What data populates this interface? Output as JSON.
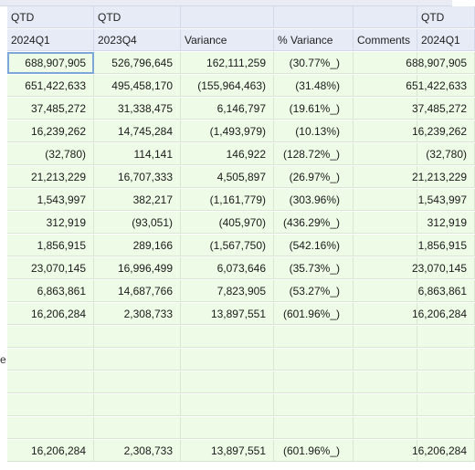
{
  "header_rows": [
    [
      "QTD",
      "QTD",
      "",
      "",
      "",
      "QTD"
    ],
    [
      "2024Q1",
      "2023Q4",
      "Variance",
      "% Variance",
      "Comments",
      "2024Q1"
    ]
  ],
  "rows": [
    {
      "gutter": "",
      "v": [
        "688,907,905",
        "526,796,645",
        "162,111,259",
        "(30.77%_)",
        "",
        "688,907,905"
      ]
    },
    {
      "gutter": "",
      "v": [
        "651,422,633",
        "495,458,170",
        "(155,964,463)",
        "(31.48%)",
        "",
        "651,422,633"
      ]
    },
    {
      "gutter": "",
      "v": [
        "37,485,272",
        "31,338,475",
        "6,146,797",
        "(19.61%_)",
        "",
        "37,485,272"
      ]
    },
    {
      "gutter": "",
      "v": [
        "16,239,262",
        "14,745,284",
        "(1,493,979)",
        "(10.13%)",
        "",
        "16,239,262"
      ]
    },
    {
      "gutter": "",
      "v": [
        "(32,780)",
        "114,141",
        "146,922",
        "(128.72%_)",
        "",
        "(32,780)"
      ]
    },
    {
      "gutter": "",
      "v": [
        "21,213,229",
        "16,707,333",
        "4,505,897",
        "(26.97%_)",
        "",
        "21,213,229"
      ]
    },
    {
      "gutter": "",
      "v": [
        "1,543,997",
        "382,217",
        "(1,161,779)",
        "(303.96%)",
        "",
        "1,543,997"
      ]
    },
    {
      "gutter": "",
      "v": [
        "312,919",
        "(93,051)",
        "(405,970)",
        "(436.29%_)",
        "",
        "312,919"
      ]
    },
    {
      "gutter": "",
      "v": [
        "1,856,915",
        "289,166",
        "(1,567,750)",
        "(542.16%)",
        "",
        "1,856,915"
      ]
    },
    {
      "gutter": "",
      "v": [
        "23,070,145",
        "16,996,499",
        "6,073,646",
        "(35.73%_)",
        "",
        "23,070,145"
      ]
    },
    {
      "gutter": "",
      "v": [
        "6,863,861",
        "14,687,766",
        "7,823,905",
        "(53.27%_)",
        "",
        "6,863,861"
      ]
    },
    {
      "gutter": "",
      "v": [
        "16,206,284",
        "2,308,733",
        "13,897,551",
        "(601.96%_)",
        "",
        "16,206,284"
      ]
    },
    {
      "gutter": "",
      "v": [
        "",
        "",
        "",
        "",
        "",
        ""
      ]
    },
    {
      "gutter": "e",
      "v": [
        "",
        "",
        "",
        "",
        "",
        ""
      ]
    },
    {
      "gutter": "",
      "v": [
        "",
        "",
        "",
        "",
        "",
        ""
      ]
    },
    {
      "gutter": "",
      "v": [
        "",
        "",
        "",
        "",
        "",
        ""
      ]
    },
    {
      "gutter": "",
      "v": [
        "",
        "",
        "",
        "",
        "",
        ""
      ]
    },
    {
      "gutter": "",
      "v": [
        "16,206,284",
        "2,308,733",
        "13,897,551",
        "(601.96%_)",
        "",
        "16,206,284"
      ]
    }
  ],
  "colors": {
    "header_bg": "#e6ebf6",
    "cell_bg": "#eefbe6",
    "grid_line": "#d9e6d2",
    "selection": "#7da7d9"
  }
}
